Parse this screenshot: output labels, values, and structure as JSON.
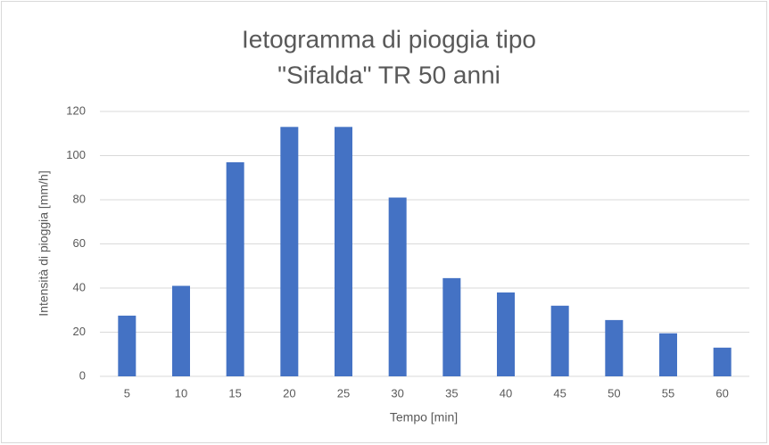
{
  "chart_data": {
    "type": "bar",
    "title": [
      "Ietogramma di pioggia tipo",
      "\"Sifalda\" TR 50 anni"
    ],
    "x_label": "Tempo [min]",
    "y_label": "Intensità di pioggia [mm/h]",
    "categories": [
      5,
      10,
      15,
      20,
      25,
      30,
      35,
      40,
      45,
      50,
      55,
      60
    ],
    "values": [
      27.5,
      41,
      97,
      113,
      113,
      81,
      44.5,
      38,
      32,
      25.5,
      19.5,
      13
    ],
    "color": "#4472c4",
    "ylim": [
      0,
      120
    ],
    "yticks": [
      0,
      20,
      40,
      60,
      80,
      100,
      120
    ],
    "grid": true
  }
}
